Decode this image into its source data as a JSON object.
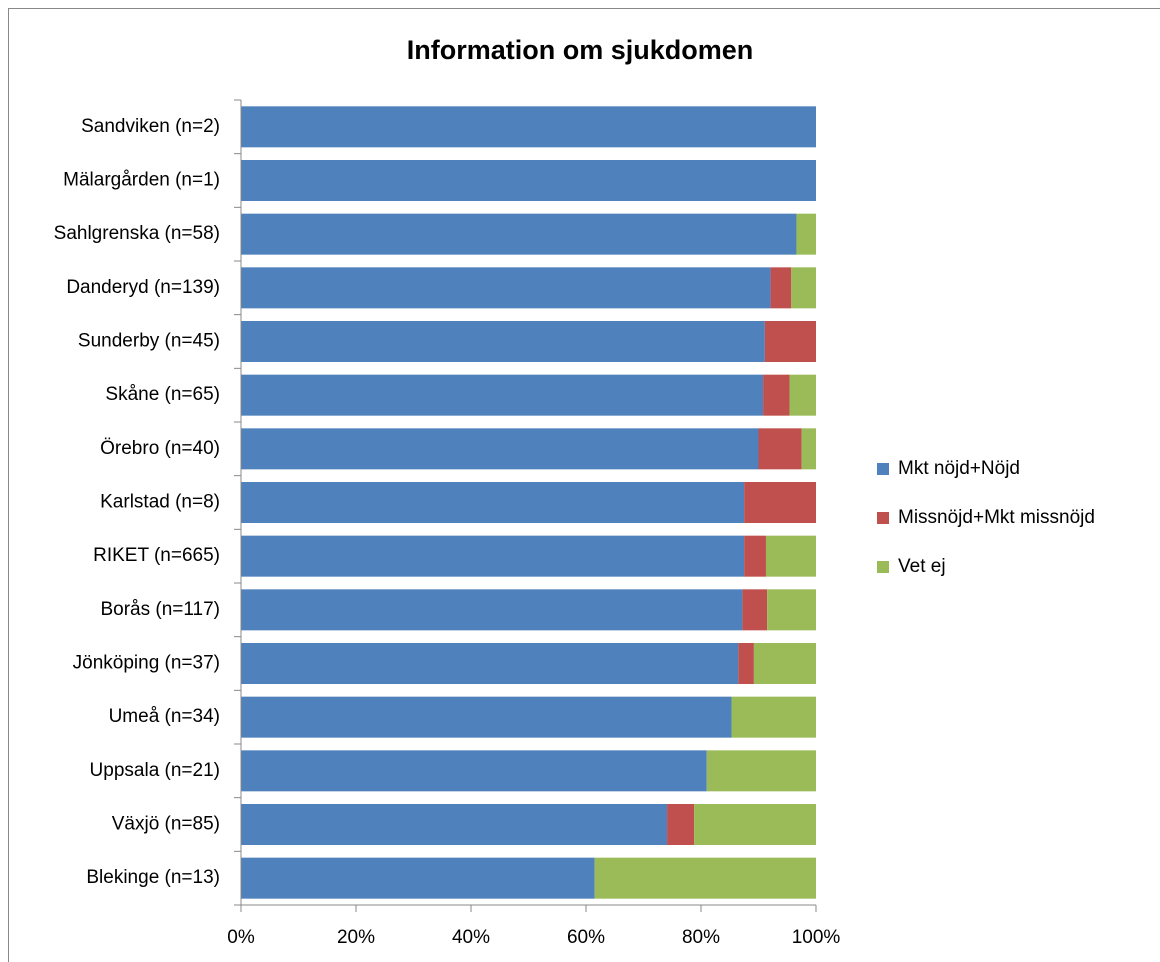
{
  "chart_data": {
    "type": "stacked_bar_horizontal",
    "title": "Information om sjukdomen",
    "categories": [
      "Sandviken  (n=2)",
      "Mälargården (n=1)",
      "Sahlgrenska  (n=58)",
      "Danderyd  (n=139)",
      "Sunderby  (n=45)",
      "Skåne  (n=65)",
      "Örebro  (n=40)",
      "Karlstad  (n=8)",
      "RIKET  (n=665)",
      "Borås  (n=117)",
      "Jönköping  (n=37)",
      "Umeå  (n=34)",
      "Uppsala  (n=21)",
      "Växjö  (n=85)",
      "Blekinge  (n=13)"
    ],
    "series": [
      {
        "name": "Mkt nöjd+Nöjd",
        "color": "#4f81bd",
        "values": [
          100,
          100,
          96.6,
          92.1,
          91.1,
          90.8,
          90,
          87.5,
          87.5,
          87.2,
          86.5,
          85.3,
          81,
          74.1,
          61.5
        ]
      },
      {
        "name": "Missnöjd+Mkt missnöjd",
        "color": "#c0504d",
        "values": [
          0,
          0,
          0,
          3.6,
          8.9,
          4.6,
          7.5,
          12.5,
          3.8,
          4.3,
          2.7,
          0,
          0,
          4.7,
          0
        ]
      },
      {
        "name": "Vet ej",
        "color": "#9bbb59",
        "values": [
          0,
          0,
          3.4,
          4.3,
          0,
          4.6,
          2.5,
          0,
          8.7,
          8.5,
          10.8,
          14.7,
          19,
          21.2,
          38.5
        ]
      }
    ],
    "xlim": [
      0,
      100
    ],
    "xticks": [
      {
        "value": 0,
        "label": "0%"
      },
      {
        "value": 20,
        "label": "20%"
      },
      {
        "value": 40,
        "label": "40%"
      },
      {
        "value": 60,
        "label": "60%"
      },
      {
        "value": 80,
        "label": "80%"
      },
      {
        "value": 100,
        "label": "100%"
      }
    ],
    "legend": "right"
  }
}
